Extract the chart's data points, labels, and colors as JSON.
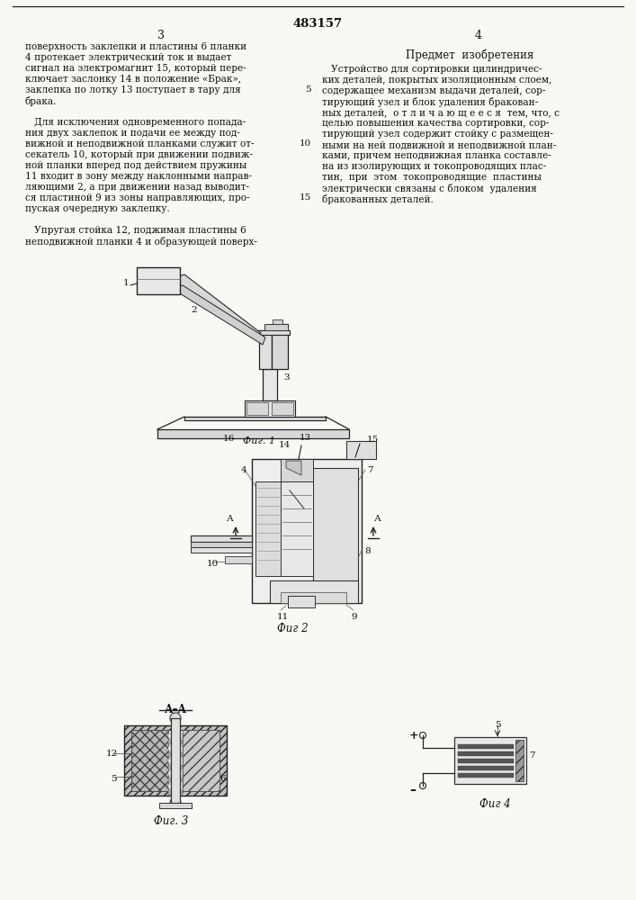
{
  "patent_number": "483157",
  "page_left": "3",
  "page_right": "4",
  "bg_color": "#f8f8f5",
  "text_color": "#111111",
  "left_col_lines": [
    "поверхность заклепки и пластины 6 планки",
    "4 протекает электрический ток и выдает",
    "сигнал на электромагнит 15, который пере-",
    "ключает заслонку 14 в положение «Брак»,",
    "заклепка по лотку 13 поступает в тару для",
    "брака.",
    "",
    "   Для исключения одновременного попада-",
    "ния двух заклепок и подачи ее между под-",
    "вижной и неподвижной планками служит от-",
    "секатель 10, который при движении подвиж-",
    "ной планки вперед под действием пружины",
    "11 входит в зону между наклонными направ-",
    "ляющими 2, а при движении назад выводит-",
    "ся пластиной 9 из зоны направляющих, про-",
    "пуская очередную заклепку.",
    "",
    "   Упругая стойка 12, поджимая пластины 6",
    "неподвижной планки 4 и образующей поверх-"
  ],
  "right_header": "Предмет  изобретения",
  "right_col_lines": [
    "   Устройство для сортировки цилиндричес-",
    "ких деталей, покрытых изоляционным слоем,",
    "содержащее механизм выдачи деталей, сор-",
    "тирующий узел и блок удаления бракован-",
    "ных деталей,  о т л и ч а ю щ е е с я  тем, что, с",
    "целью повышения качества сортировки, сор-",
    "тирующий узел содержит стойку с размещен-",
    "ными на ней подвижной и неподвижной план-",
    "ками, причем неподвижная планка составле-",
    "на из изолирующих и токопроводящих плас-",
    "тин,  при  этом  токопроводящие  пластины",
    "электрически связаны с блоком  удаления",
    "бракованных деталей."
  ]
}
